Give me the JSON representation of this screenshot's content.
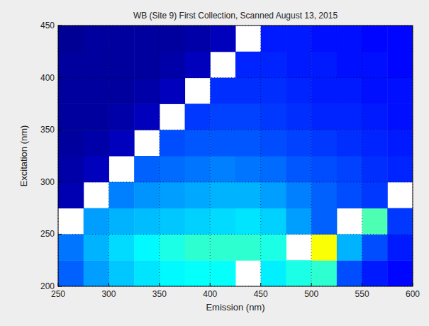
{
  "chart_data": {
    "type": "heatmap",
    "title": "WB (Site 9) First Collection, Scanned August 13, 2015",
    "x_label": "Emission (nm)",
    "y_label": "Excitation (nm)",
    "xlim": [
      250,
      600
    ],
    "ylim": [
      200,
      450
    ],
    "xticks": [
      250,
      300,
      350,
      400,
      450,
      500,
      550,
      600
    ],
    "yticks": [
      200,
      250,
      300,
      350,
      400,
      450
    ],
    "grid": true,
    "x_edges": [
      250,
      275,
      300,
      325,
      350,
      375,
      400,
      425,
      450,
      475,
      500,
      525,
      550,
      575,
      600
    ],
    "y_edges": [
      200,
      225,
      250,
      275,
      300,
      325,
      350,
      375,
      400,
      425,
      450
    ],
    "zlim": [
      0,
      1
    ],
    "cells": [
      [
        0.22,
        0.28,
        0.32,
        0.35,
        0.37,
        0.38,
        0.38,
        null,
        0.36,
        0.4,
        0.42,
        0.2,
        0.15,
        0.13
      ],
      [
        0.24,
        0.3,
        0.34,
        0.37,
        0.4,
        0.42,
        0.42,
        0.42,
        0.4,
        null,
        0.62,
        0.3,
        0.2,
        0.15
      ],
      [
        null,
        0.28,
        0.3,
        0.31,
        0.32,
        0.33,
        0.34,
        0.35,
        0.33,
        0.28,
        0.22,
        null,
        0.45,
        0.18
      ],
      [
        0.05,
        null,
        0.25,
        0.27,
        0.28,
        0.29,
        0.3,
        0.3,
        0.28,
        0.25,
        0.22,
        0.2,
        0.18,
        null
      ],
      [
        0.04,
        0.06,
        null,
        0.22,
        0.23,
        0.24,
        0.25,
        0.24,
        0.23,
        0.21,
        0.2,
        0.19,
        0.17,
        0.16
      ],
      [
        0.03,
        0.04,
        0.06,
        null,
        0.2,
        0.21,
        0.21,
        0.21,
        0.2,
        0.19,
        0.18,
        0.17,
        0.16,
        0.15
      ],
      [
        0.03,
        0.03,
        0.04,
        0.06,
        null,
        0.18,
        0.19,
        0.19,
        0.18,
        0.17,
        0.16,
        0.16,
        0.15,
        0.14
      ],
      [
        0.03,
        0.03,
        0.03,
        0.04,
        0.06,
        null,
        0.17,
        0.17,
        0.17,
        0.16,
        0.15,
        0.15,
        0.14,
        0.14
      ],
      [
        0.03,
        0.03,
        0.03,
        0.03,
        0.04,
        0.06,
        null,
        0.16,
        0.16,
        0.15,
        0.15,
        0.14,
        0.14,
        0.13
      ],
      [
        0.02,
        0.03,
        0.03,
        0.03,
        0.03,
        0.04,
        0.06,
        null,
        0.15,
        0.15,
        0.14,
        0.14,
        0.13,
        0.13
      ]
    ]
  }
}
